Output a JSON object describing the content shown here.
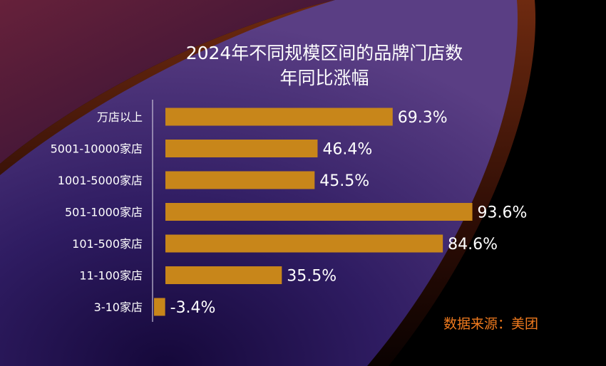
{
  "title_line1": "2024年不同规模区间的品牌门店数",
  "title_line2": "年同比涨幅",
  "source": "数据来源：美团",
  "colors": {
    "bar": "#c8861a",
    "text": "#ffffff",
    "source": "#f07a1e",
    "axis": "#c9c2d8"
  },
  "chart_data": {
    "type": "bar",
    "orientation": "horizontal",
    "title": "2024年不同规模区间的品牌门店数年同比涨幅",
    "categories": [
      "万店以上",
      "5001-10000家店",
      "1001-5000家店",
      "501-1000家店",
      "101-500家店",
      "11-100家店",
      "3-10家店"
    ],
    "values": [
      69.3,
      46.4,
      45.5,
      93.6,
      84.6,
      35.5,
      -3.4
    ],
    "value_labels": [
      "69.3%",
      "46.4%",
      "45.5%",
      "93.6%",
      "84.6%",
      "35.5%",
      "-3.4%"
    ],
    "unit": "%",
    "grid": false,
    "legend": "none"
  }
}
